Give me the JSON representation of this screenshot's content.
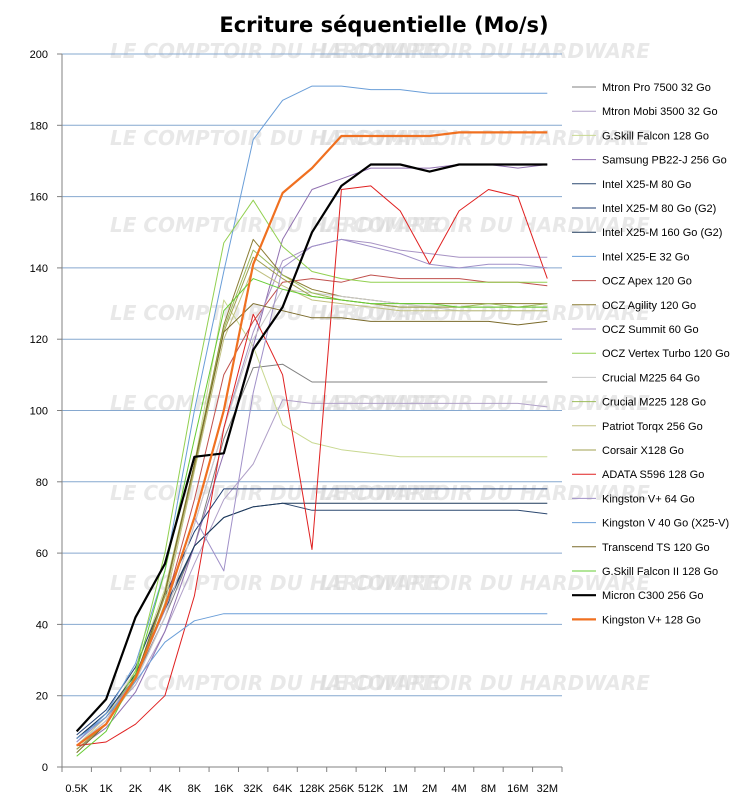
{
  "chart_data": {
    "type": "line",
    "title": "Ecriture séquentielle (Mo/s)",
    "xlabel": "",
    "ylabel": "",
    "ylim": [
      0,
      200
    ],
    "yticks": [
      0,
      20,
      40,
      60,
      80,
      100,
      120,
      140,
      160,
      180,
      200
    ],
    "grid": true,
    "legend_position": "right",
    "watermark": "LE COMPTOIR DU HARDWARE",
    "categories": [
      "0.5K",
      "1K",
      "2K",
      "4K",
      "8K",
      "16K",
      "32K",
      "64K",
      "128K",
      "256K",
      "512K",
      "1M",
      "2M",
      "4M",
      "8M",
      "16M",
      "32M"
    ],
    "series": [
      {
        "name": "Mtron Pro 7500 32 Go",
        "color": "#808080",
        "width": 1,
        "values": [
          8,
          15,
          25,
          42,
          62,
          92,
          112,
          113,
          108,
          108,
          108,
          108,
          108,
          108,
          108,
          108,
          108
        ]
      },
      {
        "name": "Mtron Mobi 3500 32 Go",
        "color": "#b0a0c8",
        "width": 1,
        "values": [
          8,
          14,
          23,
          38,
          57,
          75,
          85,
          103,
          102,
          102,
          102,
          102,
          102,
          102,
          102,
          102,
          101
        ]
      },
      {
        "name": "G.Skill Falcon 128 Go",
        "color": "#c8d890",
        "width": 1,
        "values": [
          6,
          14,
          27,
          50,
          85,
          131,
          118,
          96,
          91,
          89,
          88,
          87,
          87,
          87,
          87,
          87,
          87
        ]
      },
      {
        "name": "Samsung PB22-J 256 Go",
        "color": "#9070b0",
        "width": 1,
        "values": [
          5,
          11,
          21,
          38,
          62,
          88,
          118,
          148,
          162,
          165,
          168,
          168,
          168,
          169,
          169,
          168,
          169
        ]
      },
      {
        "name": "Intel X25-M 80 Go",
        "color": "#2c4870",
        "width": 1,
        "values": [
          8,
          15,
          26,
          44,
          62,
          70,
          73,
          74,
          72,
          72,
          72,
          72,
          72,
          72,
          72,
          72,
          71
        ]
      },
      {
        "name": "Intel X25-M 80 Go (G2)",
        "color": "#1f3c70",
        "width": 1,
        "values": [
          9,
          16,
          28,
          48,
          66,
          78,
          78,
          78,
          78,
          78,
          78,
          78,
          78,
          78,
          78,
          78,
          78
        ]
      },
      {
        "name": "Intel X25-M 160 Go (G2)",
        "color": "#1e3a5c",
        "width": 1,
        "values": [
          8,
          15,
          26,
          45,
          62,
          70,
          73,
          74,
          74,
          74,
          74,
          74,
          74,
          74,
          74,
          74,
          74
        ]
      },
      {
        "name": "Intel X25-E 32 Go",
        "color": "#6a9ed8",
        "width": 1,
        "values": [
          7,
          15,
          29,
          55,
          100,
          139,
          176,
          187,
          191,
          191,
          190,
          190,
          189,
          189,
          189,
          189,
          189
        ]
      },
      {
        "name": "OCZ Apex 120 Go",
        "color": "#c0504d",
        "width": 1,
        "values": [
          6,
          13,
          25,
          45,
          75,
          110,
          125,
          136,
          137,
          136,
          138,
          137,
          137,
          137,
          136,
          136,
          135
        ]
      },
      {
        "name": "OCZ Agility 120 Go",
        "color": "#8b7d35",
        "width": 1,
        "values": [
          5,
          12,
          24,
          48,
          85,
          124,
          148,
          138,
          134,
          132,
          131,
          130,
          130,
          130,
          130,
          130,
          130
        ]
      },
      {
        "name": "OCZ Summit 60 Go",
        "color": "#a894c4",
        "width": 1,
        "values": [
          6,
          13,
          24,
          42,
          68,
          95,
          122,
          142,
          146,
          148,
          147,
          145,
          144,
          143,
          143,
          143,
          143
        ]
      },
      {
        "name": "OCZ Vertex Turbo 120 Go",
        "color": "#92d050",
        "width": 1,
        "values": [
          4,
          12,
          27,
          60,
          106,
          147,
          159,
          146,
          139,
          137,
          136,
          136,
          136,
          136,
          136,
          136,
          136
        ]
      },
      {
        "name": "Crucial M225 64 Go",
        "color": "#c8c8c8",
        "width": 1,
        "values": [
          6,
          13,
          24,
          42,
          68,
          95,
          120,
          134,
          133,
          132,
          131,
          130,
          129,
          128,
          128,
          128,
          128
        ]
      },
      {
        "name": "Crucial M225 128 Go",
        "color": "#9bbb59",
        "width": 1,
        "values": [
          5,
          12,
          25,
          48,
          85,
          123,
          145,
          138,
          133,
          131,
          130,
          129,
          129,
          129,
          130,
          129,
          130
        ]
      },
      {
        "name": "Patriot Torqx 256 Go",
        "color": "#c0c080",
        "width": 1,
        "values": [
          5,
          12,
          24,
          46,
          83,
          120,
          140,
          135,
          131,
          130,
          129,
          128,
          128,
          128,
          128,
          128,
          128
        ]
      },
      {
        "name": "Corsair X128 Go",
        "color": "#a0a050",
        "width": 1,
        "values": [
          5,
          12,
          25,
          48,
          84,
          122,
          143,
          137,
          132,
          131,
          130,
          129,
          129,
          129,
          129,
          129,
          129
        ]
      },
      {
        "name": "ADATA S596 128 Go",
        "color": "#e02020",
        "width": 1,
        "values": [
          6,
          7,
          12,
          20,
          48,
          95,
          127,
          110,
          61,
          162,
          163,
          156,
          141,
          156,
          162,
          160,
          137
        ]
      },
      {
        "name": "Kingston V+ 64 Go",
        "color": "#a090c8",
        "width": 1,
        "values": [
          7,
          14,
          25,
          44,
          70,
          55,
          105,
          140,
          146,
          148,
          146,
          144,
          141,
          140,
          141,
          141,
          140
        ]
      },
      {
        "name": "Kingston V 40 Go (X25-V)",
        "color": "#6a9ed8",
        "width": 1,
        "values": [
          8,
          14,
          24,
          35,
          41,
          43,
          43,
          43,
          43,
          43,
          43,
          43,
          43,
          43,
          43,
          43,
          43
        ]
      },
      {
        "name": "Transcend TS 120 Go",
        "color": "#7a6a2a",
        "width": 1,
        "values": [
          4,
          12,
          25,
          49,
          85,
          122,
          130,
          128,
          126,
          126,
          125,
          125,
          125,
          125,
          125,
          124,
          125
        ]
      },
      {
        "name": "G.Skill Falcon II 128 Go",
        "color": "#66cc33",
        "width": 1,
        "values": [
          3,
          10,
          26,
          55,
          92,
          128,
          137,
          134,
          132,
          131,
          130,
          130,
          130,
          129,
          129,
          129,
          129
        ]
      },
      {
        "name": "Micron C300 256 Go",
        "color": "#000000",
        "width": 2.2,
        "values": [
          10,
          19,
          42,
          57,
          87,
          88,
          117,
          129,
          150,
          163,
          169,
          169,
          167,
          169,
          169,
          169,
          169
        ]
      },
      {
        "name": "Kingston V+ 128 Go",
        "color": "#f07020",
        "width": 2.2,
        "values": [
          6,
          12,
          25,
          45,
          70,
          100,
          141,
          161,
          168,
          177,
          177,
          177,
          177,
          178,
          178,
          178,
          178
        ]
      }
    ]
  }
}
